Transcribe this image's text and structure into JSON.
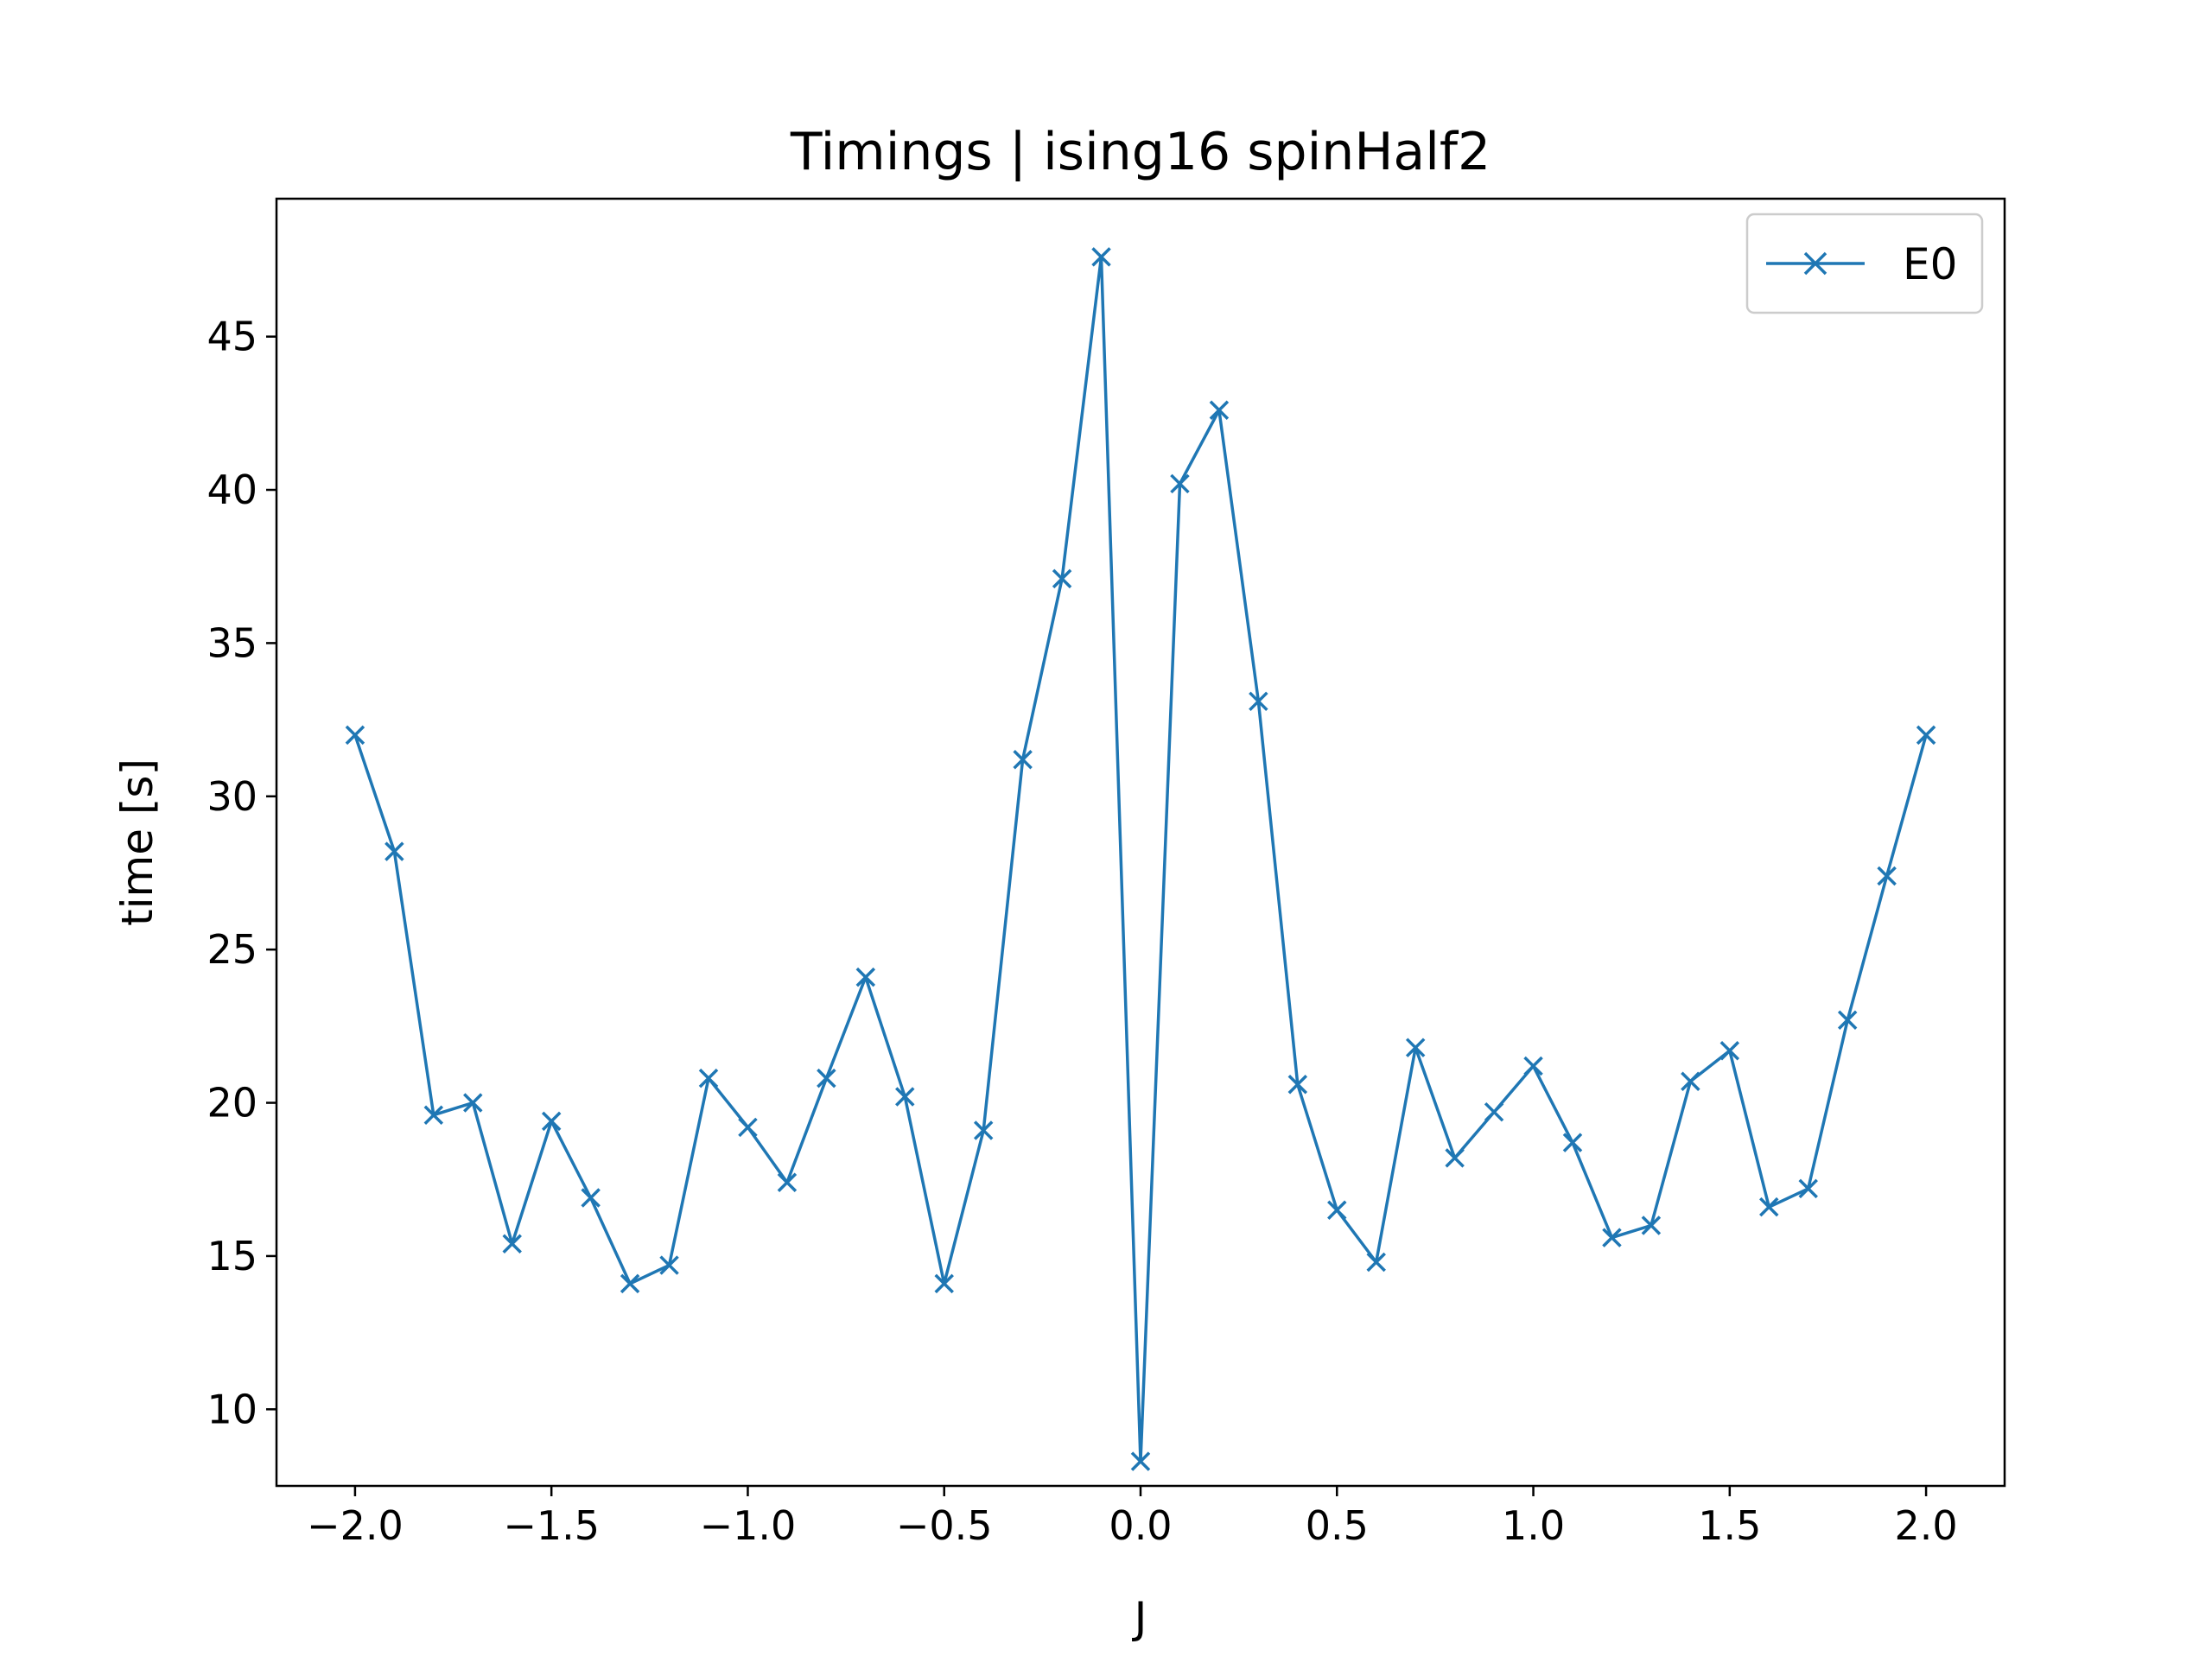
{
  "chart_data": {
    "type": "line",
    "title": "Timings | ising16 spinHalf2",
    "xlabel": "J",
    "ylabel": "time [s]",
    "xlim": [
      -2.2,
      2.2
    ],
    "ylim": [
      7.5,
      49.5
    ],
    "xticks": [
      "−2.0",
      "−1.5",
      "−1.0",
      "−0.5",
      "0.0",
      "0.5",
      "1.0",
      "1.5",
      "2.0"
    ],
    "yticks": [
      "10",
      "15",
      "20",
      "25",
      "30",
      "35",
      "40",
      "45"
    ],
    "grid": false,
    "legend_position": "top-right",
    "series": [
      {
        "name": "E0",
        "color": "#1f77b4",
        "marker": "x",
        "x": [
          -2.0,
          -1.9,
          -1.8,
          -1.7,
          -1.6,
          -1.5,
          -1.4,
          -1.3,
          -1.2,
          -1.1,
          -1.0,
          -0.9,
          -0.8,
          -0.7,
          -0.6,
          -0.5,
          -0.4,
          -0.3,
          -0.2,
          -0.1,
          0.0,
          0.1,
          0.2,
          0.3,
          0.4,
          0.5,
          0.6,
          0.7,
          0.8,
          0.9,
          1.0,
          1.1,
          1.2,
          1.3,
          1.4,
          1.5,
          1.6,
          1.7,
          1.8,
          1.9,
          2.0
        ],
        "y": [
          32.0,
          28.2,
          19.6,
          20.0,
          15.4,
          19.4,
          16.9,
          14.1,
          14.7,
          20.8,
          19.2,
          17.4,
          20.8,
          24.1,
          20.2,
          14.1,
          19.1,
          31.2,
          37.1,
          47.6,
          8.3,
          40.2,
          42.6,
          33.1,
          20.6,
          16.5,
          14.8,
          21.8,
          18.2,
          19.7,
          21.2,
          18.7,
          15.6,
          16.0,
          20.7,
          21.7,
          16.6,
          17.2,
          22.7,
          27.4,
          32.0
        ]
      }
    ]
  }
}
